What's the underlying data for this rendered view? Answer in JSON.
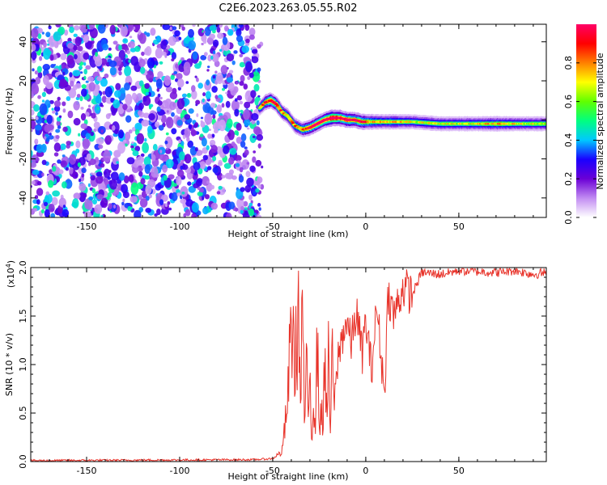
{
  "title": "C2E6.2023.263.05.55.R02",
  "chart_data": [
    {
      "type": "heatmap",
      "xlabel": "Height of straight line (km)",
      "ylabel": "Frequency (Hz)",
      "xlim": [
        -180,
        97
      ],
      "ylim": [
        -50,
        49
      ],
      "x_ticks": [
        -150,
        -100,
        -50,
        0,
        50
      ],
      "y_ticks": [
        -40,
        -20,
        0,
        20,
        40
      ],
      "noise_region_x": [
        -180,
        -57
      ],
      "colorbar": {
        "label": "Normalized spectral amplitude",
        "range": [
          0,
          1
        ],
        "ticks": [
          "0.0",
          "0.2",
          "0.4",
          "0.6",
          "0.8"
        ],
        "colors": [
          "#ffffff",
          "#c28cf2",
          "#6b00d6",
          "#1a00ff",
          "#00c8ff",
          "#00ff80",
          "#60ff00",
          "#ffff00",
          "#ff8000",
          "#ff0000",
          "#ff0066"
        ]
      },
      "ridge": {
        "x": [
          -57,
          -54,
          -51,
          -48,
          -45,
          -42,
          -38,
          -34,
          -30,
          -26,
          -22,
          -18,
          -14,
          -10,
          -6,
          -2,
          5,
          15,
          25,
          40,
          55,
          70,
          85,
          97
        ],
        "y": [
          6,
          9,
          10,
          8,
          4,
          2,
          -3,
          -5,
          -4,
          -2,
          0,
          1,
          1,
          0,
          0,
          -1,
          -1,
          -1,
          -1,
          -2,
          -2,
          -2,
          -2,
          -2
        ],
        "peak_amplitude": [
          0.5,
          0.65,
          0.75,
          0.7,
          0.6,
          0.55,
          0.6,
          0.65,
          0.7,
          0.75,
          0.8,
          0.85,
          0.8,
          0.8,
          0.75,
          0.7,
          0.55,
          0.55,
          0.5,
          0.5,
          0.5,
          0.55,
          0.5,
          0.5
        ]
      }
    },
    {
      "type": "line",
      "xlabel": "Height of straight line (km)",
      "ylabel": "SNR (10 * v/v)",
      "scale_label": "(x10",
      "scale_exp": "4",
      "scale_close": ")",
      "xlim": [
        -180,
        97
      ],
      "ylim": [
        0,
        2.0
      ],
      "x_ticks": [
        -150,
        -100,
        -50,
        0,
        50
      ],
      "y_ticks": [
        "0.0",
        "0.5",
        "1.0",
        "1.5",
        "2.0"
      ],
      "color": "#e8332a",
      "series": [
        {
          "x": [
            -180,
            -60,
            -50,
            -45,
            -42,
            -40,
            -38,
            -36,
            -35,
            -34,
            -33,
            -32,
            -31,
            -30,
            -29,
            -28,
            -27,
            -26,
            -25,
            -24,
            -23,
            -22,
            -21,
            -20,
            -19,
            -18,
            -17,
            -15,
            -12,
            -10,
            -8,
            -5,
            -2,
            0,
            3,
            6,
            10,
            12,
            15,
            20,
            25,
            30,
            40,
            50,
            60,
            70,
            80,
            90,
            97
          ],
          "y": [
            0.01,
            0.02,
            0.03,
            0.1,
            0.6,
            1.45,
            1.0,
            1.55,
            0.45,
            1.85,
            0.3,
            1.2,
            0.25,
            1.0,
            0.2,
            0.7,
            0.4,
            1.3,
            0.3,
            0.65,
            0.2,
            1.35,
            0.45,
            1.05,
            0.3,
            1.25,
            0.5,
            1.05,
            1.35,
            1.45,
            1.2,
            1.55,
            1.1,
            1.45,
            0.95,
            1.6,
            0.7,
            1.75,
            1.5,
            1.8,
            1.72,
            1.95,
            1.93,
            1.97,
            1.96,
            1.95,
            1.97,
            1.93,
            1.95
          ]
        }
      ]
    }
  ]
}
